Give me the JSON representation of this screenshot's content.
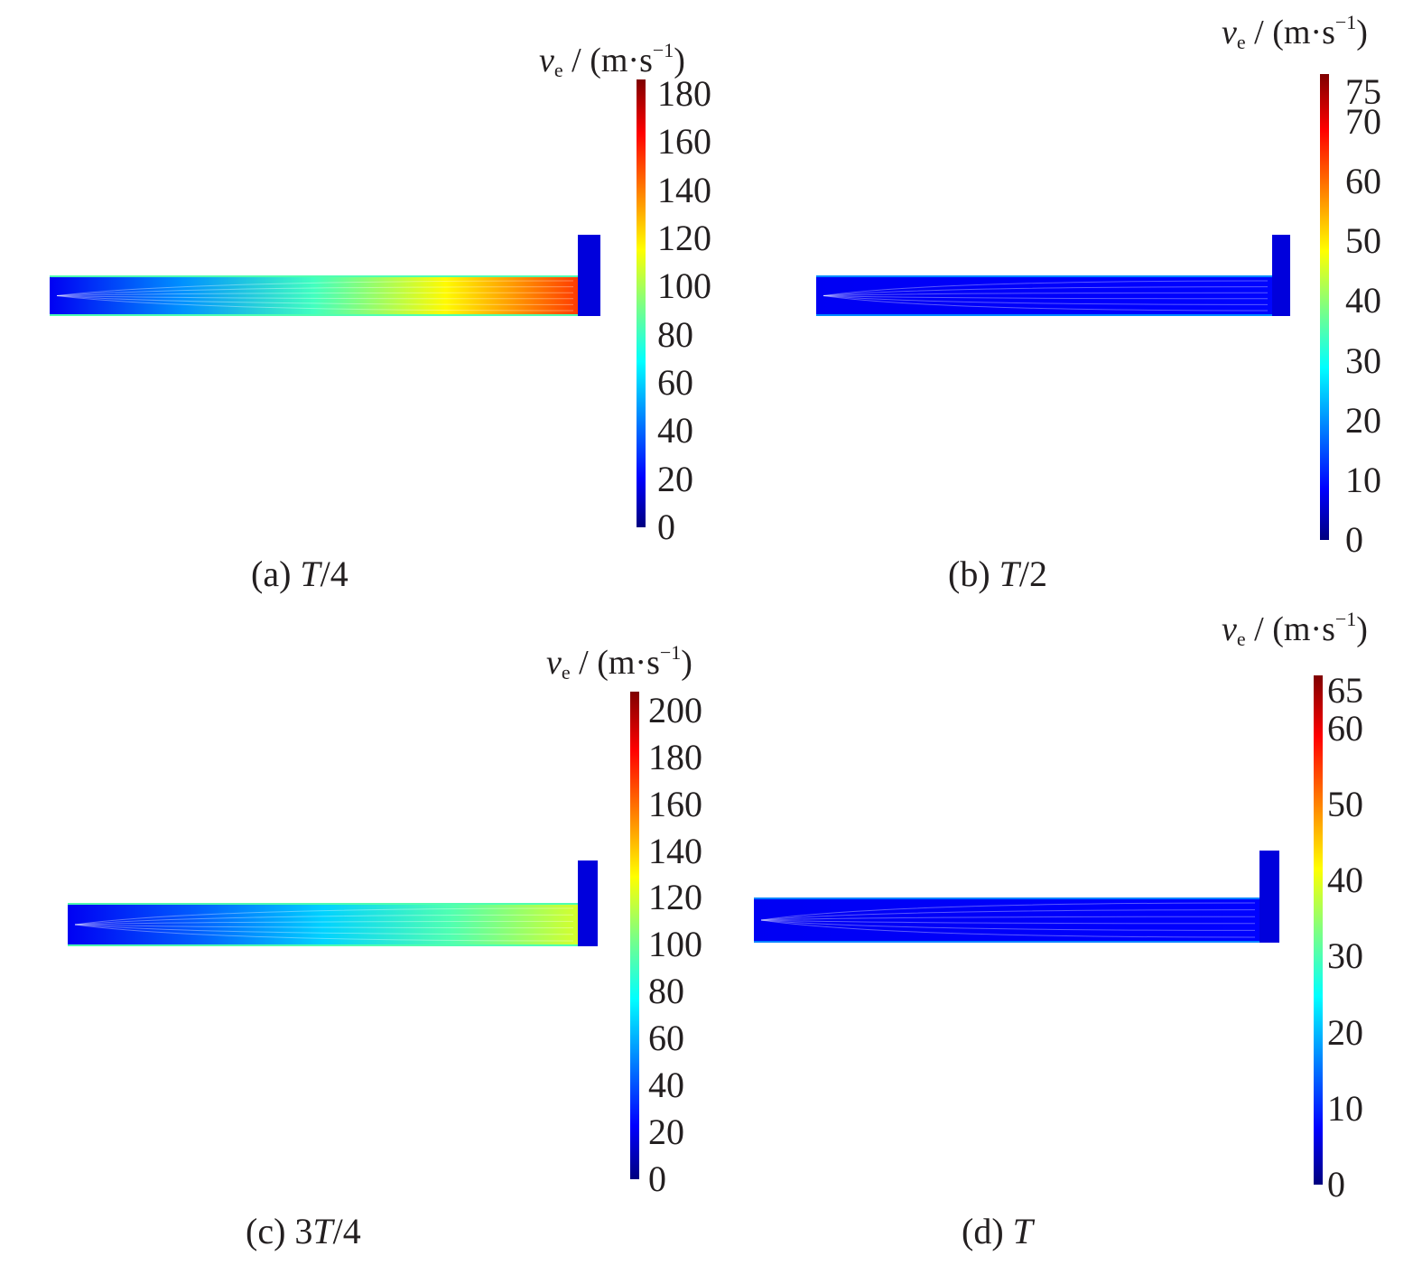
{
  "chart_data": [
    {
      "type": "heatmap",
      "panel_label": "(a)",
      "caption_rest": "/4",
      "caption_prefix": "",
      "caption_var": "T",
      "colorbar": {
        "var": "v",
        "sub": "e",
        "units_pre": " / (m·s",
        "units_sup": "−1",
        "units_post": ")",
        "min": 0,
        "max": 186,
        "ticks": [
          0,
          20,
          40,
          60,
          80,
          100,
          120,
          140,
          160,
          180
        ]
      },
      "field_max_fraction": 0.82
    },
    {
      "type": "heatmap",
      "panel_label": "(b)",
      "caption_prefix": "",
      "caption_var": "T",
      "caption_rest": "/2",
      "colorbar": {
        "var": "v",
        "sub": "e",
        "units_pre": " / (m·s",
        "units_sup": "−1",
        "units_post": ")",
        "min": 0,
        "max": 78,
        "ticks": [
          0,
          10,
          20,
          30,
          40,
          50,
          60,
          70,
          75
        ]
      },
      "field_max_fraction": 0.15
    },
    {
      "type": "heatmap",
      "panel_label": "(c)",
      "caption_prefix": "3",
      "caption_var": "T",
      "caption_rest": "/4",
      "colorbar": {
        "var": "v",
        "sub": "e",
        "units_pre": " / (m·s",
        "units_sup": "−1",
        "units_post": ")",
        "min": 0,
        "max": 208,
        "ticks": [
          0,
          20,
          40,
          60,
          80,
          100,
          120,
          140,
          160,
          180,
          200
        ]
      },
      "field_max_fraction": 0.58
    },
    {
      "type": "heatmap",
      "panel_label": "(d)",
      "caption_prefix": "",
      "caption_var": "T",
      "caption_rest": "",
      "colorbar": {
        "var": "v",
        "sub": "e",
        "units_pre": " / (m·s",
        "units_sup": "−1",
        "units_post": ")",
        "min": 0,
        "max": 67,
        "ticks": [
          0,
          10,
          20,
          30,
          40,
          50,
          60,
          65
        ]
      },
      "field_max_fraction": 0.14
    }
  ]
}
